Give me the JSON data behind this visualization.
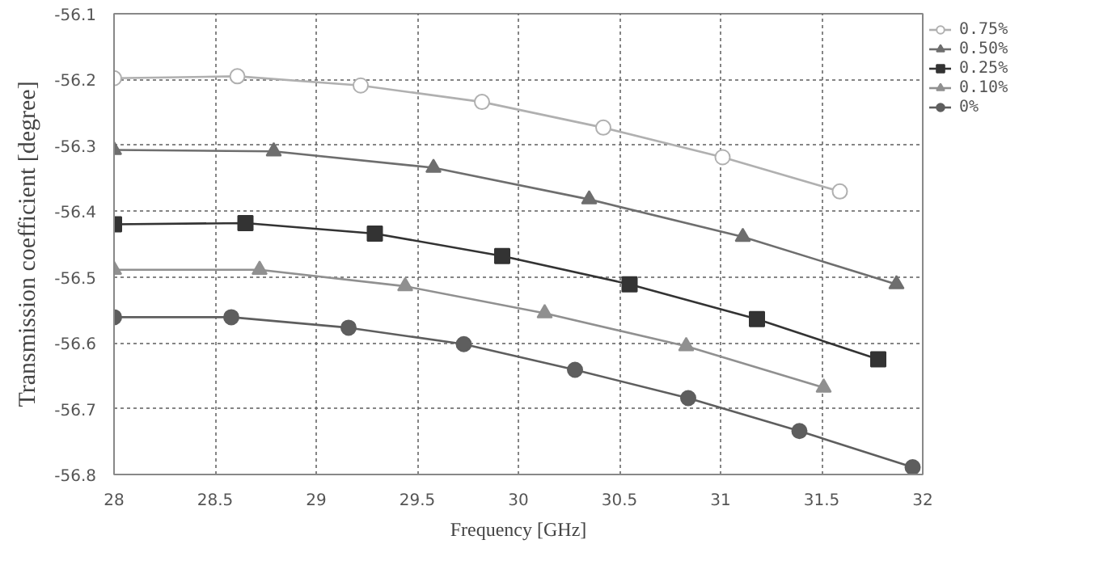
{
  "chart_data": {
    "type": "line",
    "xlabel": "Frequency [GHz]",
    "ylabel": "Transmission coefficient [degree]",
    "xlim": [
      28,
      32
    ],
    "ylim": [
      -56.8,
      -56.1
    ],
    "xticks": [
      28,
      28.5,
      29,
      29.5,
      30,
      30.5,
      31,
      31.5,
      32
    ],
    "yticks": [
      -56.8,
      -56.7,
      -56.6,
      -56.5,
      -56.4,
      -56.3,
      -56.2,
      -56.1
    ],
    "grid": true,
    "legend": "top right",
    "series": [
      {
        "name": "0.75%",
        "color": "#b0b0b0",
        "marker": "open_circle",
        "x": [
          28,
          28.61,
          29.22,
          29.82,
          30.42,
          31.01,
          31.59
        ],
        "values": [
          -56.198,
          -56.195,
          -56.209,
          -56.234,
          -56.273,
          -56.318,
          -56.37
        ]
      },
      {
        "name": "0.50%",
        "color": "#6e6e6e",
        "marker": "triangle",
        "x": [
          28,
          28.79,
          29.58,
          30.35,
          31.11,
          31.87
        ],
        "values": [
          -56.307,
          -56.309,
          -56.334,
          -56.382,
          -56.439,
          -56.511
        ]
      },
      {
        "name": "0.25%",
        "color": "#333333",
        "marker": "square",
        "x": [
          28,
          28.65,
          29.29,
          29.92,
          30.55,
          31.18,
          31.78
        ],
        "values": [
          -56.42,
          -56.418,
          -56.434,
          -56.468,
          -56.511,
          -56.564,
          -56.625
        ]
      },
      {
        "name": "0.10%",
        "color": "#909090",
        "marker": "triangle",
        "x": [
          28,
          28.72,
          29.44,
          30.13,
          30.83,
          31.51
        ],
        "values": [
          -56.489,
          -56.489,
          -56.514,
          -56.555,
          -56.605,
          -56.668
        ]
      },
      {
        "name": "0%",
        "color": "#5e5e5e",
        "marker": "circle",
        "x": [
          28,
          28.58,
          29.16,
          29.73,
          30.28,
          30.84,
          31.39,
          31.95
        ],
        "values": [
          -56.561,
          -56.561,
          -56.577,
          -56.602,
          -56.641,
          -56.684,
          -56.734,
          -56.789
        ]
      }
    ]
  }
}
